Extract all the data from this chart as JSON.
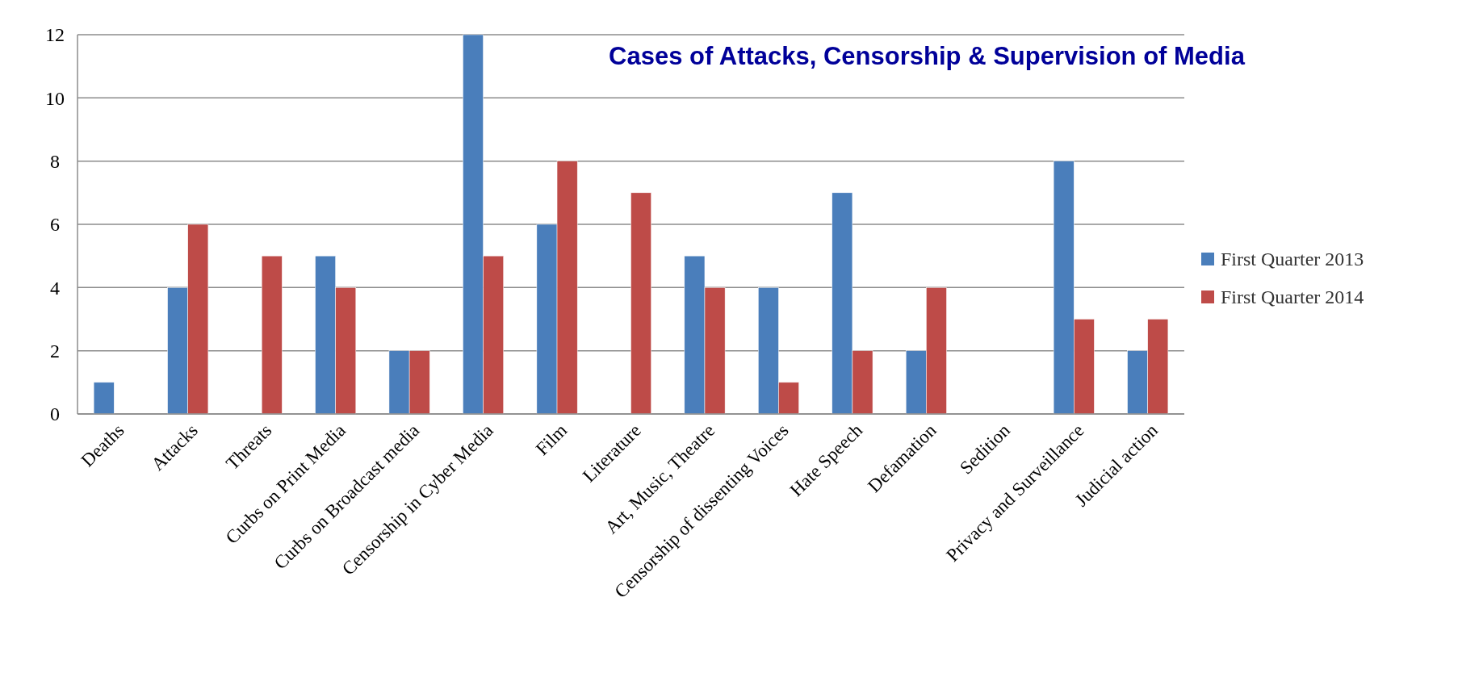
{
  "chart_data": {
    "type": "bar",
    "title": "Cases of  Attacks, Censorship & Supervision of Media",
    "categories": [
      "Deaths",
      "Attacks",
      "Threats",
      "Curbs on Print Media",
      "Curbs on Broadcast media",
      "Censorship in Cyber Media",
      "Film",
      "Literature",
      "Art, Music, Theatre",
      "Censorship of dissenting Voices",
      "Hate Speech",
      "Defamation",
      "Sedition",
      "Privacy and Surveillance",
      "Judicial action"
    ],
    "series": [
      {
        "name": "First Quarter 2013",
        "color": "#4a7ebb",
        "values": [
          1,
          4,
          0,
          5,
          2,
          12,
          6,
          0,
          5,
          4,
          7,
          2,
          0,
          8,
          2
        ]
      },
      {
        "name": "First Quarter 2014",
        "color": "#be4b48",
        "values": [
          0,
          6,
          5,
          4,
          2,
          5,
          8,
          7,
          4,
          1,
          2,
          4,
          0,
          3,
          3
        ]
      }
    ],
    "ylim": [
      0,
      12
    ],
    "yticks": [
      0,
      2,
      4,
      6,
      8,
      10,
      12
    ],
    "grid": "y",
    "legend": "right"
  }
}
